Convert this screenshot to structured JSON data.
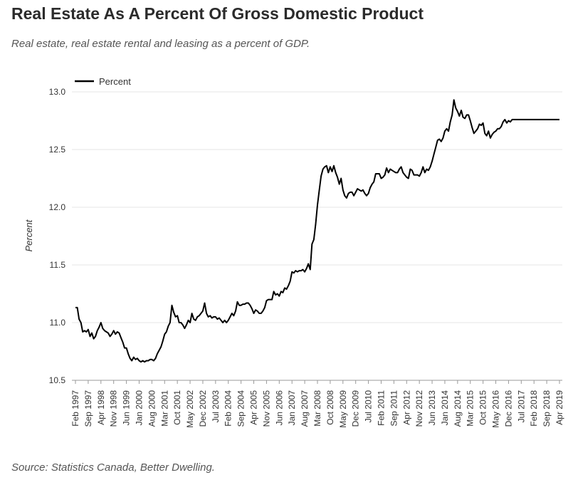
{
  "title": "Real Estate As A Percent Of Gross Domestic Product",
  "subtitle": "Real estate, real estate rental and leasing as a percent of GDP.",
  "source": "Source: Statistics Canada, Better Dwelling.",
  "chart_data": {
    "type": "line",
    "ylabel": "Percent",
    "xlabel": "",
    "ylim": [
      10.5,
      13.0
    ],
    "yticks": [
      "10.5",
      "11.0",
      "11.5",
      "12.0",
      "12.5",
      "13.0"
    ],
    "grid": "horizontal",
    "legend_position": "top-left",
    "line_color": "#000000",
    "x_tick_labels": [
      "Feb 1997",
      "Sep 1997",
      "Apr 1998",
      "Nov 1998",
      "Jun 1999",
      "Jan 2000",
      "Aug 2000",
      "Mar 2001",
      "Oct 2001",
      "May 2002",
      "Dec 2002",
      "Jul 2003",
      "Feb 2004",
      "Sep 2004",
      "Apr 2005",
      "Nov 2005",
      "Jun 2006",
      "Jan 2007",
      "Aug 2007",
      "Mar 2008",
      "Oct 2008",
      "May 2009",
      "Dec 2009",
      "Jul 2010",
      "Feb 2011",
      "Sep 2011",
      "Apr 2012",
      "Nov 2012",
      "Jun 2013",
      "Jan 2014",
      "Aug 2014",
      "Mar 2015",
      "Oct 2015",
      "May 2016",
      "Dec 2016",
      "Jul 2017",
      "Feb 2018",
      "Sep 2018",
      "Apr 2019"
    ],
    "series": [
      {
        "name": "Percent",
        "points": [
          [
            "Feb 1997",
            11.13
          ],
          [
            "Mar 1997",
            11.13
          ],
          [
            "Apr 1997",
            11.03
          ],
          [
            "May 1997",
            11.0
          ],
          [
            "Jun 1997",
            10.92
          ],
          [
            "Jul 1997",
            10.93
          ],
          [
            "Aug 1997",
            10.92
          ],
          [
            "Sep 1997",
            10.94
          ],
          [
            "Oct 1997",
            10.88
          ],
          [
            "Nov 1997",
            10.91
          ],
          [
            "Dec 1997",
            10.86
          ],
          [
            "Jan 1998",
            10.88
          ],
          [
            "Feb 1998",
            10.93
          ],
          [
            "Mar 1998",
            10.96
          ],
          [
            "Apr 1998",
            11.0
          ],
          [
            "May 1998",
            10.95
          ],
          [
            "Jun 1998",
            10.93
          ],
          [
            "Jul 1998",
            10.92
          ],
          [
            "Aug 1998",
            10.91
          ],
          [
            "Sep 1998",
            10.88
          ],
          [
            "Oct 1998",
            10.9
          ],
          [
            "Nov 1998",
            10.93
          ],
          [
            "Dec 1998",
            10.9
          ],
          [
            "Jan 1999",
            10.92
          ],
          [
            "Feb 1999",
            10.91
          ],
          [
            "Mar 1999",
            10.87
          ],
          [
            "Apr 1999",
            10.83
          ],
          [
            "May 1999",
            10.78
          ],
          [
            "Jun 1999",
            10.78
          ],
          [
            "Jul 1999",
            10.73
          ],
          [
            "Aug 1999",
            10.69
          ],
          [
            "Sep 1999",
            10.67
          ],
          [
            "Oct 1999",
            10.7
          ],
          [
            "Nov 1999",
            10.68
          ],
          [
            "Dec 1999",
            10.69
          ],
          [
            "Jan 2000",
            10.67
          ],
          [
            "Feb 2000",
            10.66
          ],
          [
            "Mar 2000",
            10.67
          ],
          [
            "Apr 2000",
            10.66
          ],
          [
            "May 2000",
            10.67
          ],
          [
            "Jun 2000",
            10.67
          ],
          [
            "Jul 2000",
            10.68
          ],
          [
            "Aug 2000",
            10.68
          ],
          [
            "Sep 2000",
            10.67
          ],
          [
            "Oct 2000",
            10.69
          ],
          [
            "Nov 2000",
            10.73
          ],
          [
            "Dec 2000",
            10.76
          ],
          [
            "Jan 2001",
            10.79
          ],
          [
            "Feb 2001",
            10.84
          ],
          [
            "Mar 2001",
            10.9
          ],
          [
            "Apr 2001",
            10.92
          ],
          [
            "May 2001",
            10.97
          ],
          [
            "Jun 2001",
            11.0
          ],
          [
            "Jul 2001",
            11.15
          ],
          [
            "Aug 2001",
            11.09
          ],
          [
            "Sep 2001",
            11.05
          ],
          [
            "Oct 2001",
            11.06
          ],
          [
            "Nov 2001",
            11.0
          ],
          [
            "Dec 2001",
            11.0
          ],
          [
            "Jan 2002",
            10.98
          ],
          [
            "Feb 2002",
            10.95
          ],
          [
            "Mar 2002",
            10.98
          ],
          [
            "Apr 2002",
            11.02
          ],
          [
            "May 2002",
            11.0
          ],
          [
            "Jun 2002",
            11.08
          ],
          [
            "Jul 2002",
            11.03
          ],
          [
            "Aug 2002",
            11.02
          ],
          [
            "Sep 2002",
            11.05
          ],
          [
            "Oct 2002",
            11.06
          ],
          [
            "Nov 2002",
            11.08
          ],
          [
            "Dec 2002",
            11.1
          ],
          [
            "Jan 2003",
            11.17
          ],
          [
            "Feb 2003",
            11.08
          ],
          [
            "Mar 2003",
            11.05
          ],
          [
            "Apr 2003",
            11.06
          ],
          [
            "May 2003",
            11.04
          ],
          [
            "Jun 2003",
            11.05
          ],
          [
            "Jul 2003",
            11.05
          ],
          [
            "Aug 2003",
            11.03
          ],
          [
            "Sep 2003",
            11.04
          ],
          [
            "Oct 2003",
            11.02
          ],
          [
            "Nov 2003",
            11.0
          ],
          [
            "Dec 2003",
            11.02
          ],
          [
            "Jan 2004",
            11.0
          ],
          [
            "Feb 2004",
            11.02
          ],
          [
            "Mar 2004",
            11.05
          ],
          [
            "Apr 2004",
            11.08
          ],
          [
            "May 2004",
            11.06
          ],
          [
            "Jun 2004",
            11.1
          ],
          [
            "Jul 2004",
            11.18
          ],
          [
            "Aug 2004",
            11.15
          ],
          [
            "Sep 2004",
            11.15
          ],
          [
            "Oct 2004",
            11.16
          ],
          [
            "Nov 2004",
            11.16
          ],
          [
            "Dec 2004",
            11.17
          ],
          [
            "Jan 2005",
            11.17
          ],
          [
            "Feb 2005",
            11.15
          ],
          [
            "Mar 2005",
            11.12
          ],
          [
            "Apr 2005",
            11.08
          ],
          [
            "May 2005",
            11.11
          ],
          [
            "Jun 2005",
            11.1
          ],
          [
            "Jul 2005",
            11.08
          ],
          [
            "Aug 2005",
            11.08
          ],
          [
            "Sep 2005",
            11.1
          ],
          [
            "Oct 2005",
            11.13
          ],
          [
            "Nov 2005",
            11.19
          ],
          [
            "Dec 2005",
            11.2
          ],
          [
            "Jan 2006",
            11.2
          ],
          [
            "Feb 2006",
            11.2
          ],
          [
            "Mar 2006",
            11.27
          ],
          [
            "Apr 2006",
            11.24
          ],
          [
            "May 2006",
            11.25
          ],
          [
            "Jun 2006",
            11.23
          ],
          [
            "Jul 2006",
            11.27
          ],
          [
            "Aug 2006",
            11.26
          ],
          [
            "Sep 2006",
            11.3
          ],
          [
            "Oct 2006",
            11.29
          ],
          [
            "Nov 2006",
            11.32
          ],
          [
            "Dec 2006",
            11.36
          ],
          [
            "Jan 2007",
            11.44
          ],
          [
            "Feb 2007",
            11.43
          ],
          [
            "Mar 2007",
            11.45
          ],
          [
            "Apr 2007",
            11.44
          ],
          [
            "May 2007",
            11.45
          ],
          [
            "Jun 2007",
            11.45
          ],
          [
            "Jul 2007",
            11.46
          ],
          [
            "Aug 2007",
            11.44
          ],
          [
            "Sep 2007",
            11.47
          ],
          [
            "Oct 2007",
            11.51
          ],
          [
            "Nov 2007",
            11.46
          ],
          [
            "Dec 2007",
            11.68
          ],
          [
            "Jan 2008",
            11.72
          ],
          [
            "Feb 2008",
            11.85
          ],
          [
            "Mar 2008",
            12.02
          ],
          [
            "Apr 2008",
            12.15
          ],
          [
            "May 2008",
            12.27
          ],
          [
            "Jun 2008",
            12.33
          ],
          [
            "Jul 2008",
            12.35
          ],
          [
            "Aug 2008",
            12.36
          ],
          [
            "Sep 2008",
            12.3
          ],
          [
            "Oct 2008",
            12.35
          ],
          [
            "Nov 2008",
            12.31
          ],
          [
            "Dec 2008",
            12.36
          ],
          [
            "Jan 2009",
            12.3
          ],
          [
            "Feb 2009",
            12.26
          ],
          [
            "Mar 2009",
            12.2
          ],
          [
            "Apr 2009",
            12.25
          ],
          [
            "May 2009",
            12.15
          ],
          [
            "Jun 2009",
            12.1
          ],
          [
            "Jul 2009",
            12.08
          ],
          [
            "Aug 2009",
            12.12
          ],
          [
            "Sep 2009",
            12.13
          ],
          [
            "Oct 2009",
            12.13
          ],
          [
            "Nov 2009",
            12.1
          ],
          [
            "Dec 2009",
            12.13
          ],
          [
            "Jan 2010",
            12.16
          ],
          [
            "Feb 2010",
            12.15
          ],
          [
            "Mar 2010",
            12.14
          ],
          [
            "Apr 2010",
            12.15
          ],
          [
            "May 2010",
            12.12
          ],
          [
            "Jun 2010",
            12.1
          ],
          [
            "Jul 2010",
            12.12
          ],
          [
            "Aug 2010",
            12.17
          ],
          [
            "Sep 2010",
            12.2
          ],
          [
            "Oct 2010",
            12.22
          ],
          [
            "Nov 2010",
            12.29
          ],
          [
            "Dec 2010",
            12.29
          ],
          [
            "Jan 2011",
            12.29
          ],
          [
            "Feb 2011",
            12.25
          ],
          [
            "Mar 2011",
            12.26
          ],
          [
            "Apr 2011",
            12.28
          ],
          [
            "May 2011",
            12.34
          ],
          [
            "Jun 2011",
            12.3
          ],
          [
            "Jul 2011",
            12.33
          ],
          [
            "Aug 2011",
            12.32
          ],
          [
            "Sep 2011",
            12.31
          ],
          [
            "Oct 2011",
            12.3
          ],
          [
            "Nov 2011",
            12.3
          ],
          [
            "Dec 2011",
            12.33
          ],
          [
            "Jan 2012",
            12.35
          ],
          [
            "Feb 2012",
            12.3
          ],
          [
            "Mar 2012",
            12.28
          ],
          [
            "Apr 2012",
            12.26
          ],
          [
            "May 2012",
            12.25
          ],
          [
            "Jun 2012",
            12.33
          ],
          [
            "Jul 2012",
            12.32
          ],
          [
            "Aug 2012",
            12.28
          ],
          [
            "Sep 2012",
            12.28
          ],
          [
            "Oct 2012",
            12.28
          ],
          [
            "Nov 2012",
            12.27
          ],
          [
            "Dec 2012",
            12.3
          ],
          [
            "Jan 2013",
            12.35
          ],
          [
            "Feb 2013",
            12.3
          ],
          [
            "Mar 2013",
            12.33
          ],
          [
            "Apr 2013",
            12.32
          ],
          [
            "May 2013",
            12.35
          ],
          [
            "Jun 2013",
            12.4
          ],
          [
            "Jul 2013",
            12.46
          ],
          [
            "Aug 2013",
            12.52
          ],
          [
            "Sep 2013",
            12.58
          ],
          [
            "Oct 2013",
            12.59
          ],
          [
            "Nov 2013",
            12.57
          ],
          [
            "Dec 2013",
            12.6
          ],
          [
            "Jan 2014",
            12.66
          ],
          [
            "Feb 2014",
            12.68
          ],
          [
            "Mar 2014",
            12.66
          ],
          [
            "Apr 2014",
            12.74
          ],
          [
            "May 2014",
            12.8
          ],
          [
            "Jun 2014",
            12.93
          ],
          [
            "Jul 2014",
            12.86
          ],
          [
            "Aug 2014",
            12.83
          ],
          [
            "Sep 2014",
            12.79
          ],
          [
            "Oct 2014",
            12.84
          ],
          [
            "Nov 2014",
            12.78
          ],
          [
            "Dec 2014",
            12.77
          ],
          [
            "Jan 2015",
            12.8
          ],
          [
            "Feb 2015",
            12.8
          ],
          [
            "Mar 2015",
            12.75
          ],
          [
            "Apr 2015",
            12.69
          ],
          [
            "May 2015",
            12.64
          ],
          [
            "Jun 2015",
            12.66
          ],
          [
            "Jul 2015",
            12.68
          ],
          [
            "Aug 2015",
            12.72
          ],
          [
            "Sep 2015",
            12.71
          ],
          [
            "Oct 2015",
            12.73
          ],
          [
            "Nov 2015",
            12.64
          ],
          [
            "Dec 2015",
            12.62
          ],
          [
            "Jan 2016",
            12.66
          ],
          [
            "Feb 2016",
            12.6
          ],
          [
            "Mar 2016",
            12.63
          ],
          [
            "Apr 2016",
            12.65
          ],
          [
            "May 2016",
            12.66
          ],
          [
            "Jun 2016",
            12.68
          ],
          [
            "Jul 2016",
            12.68
          ],
          [
            "Aug 2016",
            12.7
          ],
          [
            "Sep 2016",
            12.74
          ],
          [
            "Oct 2016",
            12.76
          ],
          [
            "Nov 2016",
            12.73
          ],
          [
            "Dec 2016",
            12.75
          ],
          [
            "Jan 2017",
            12.74
          ],
          [
            "Feb 2017",
            12.76
          ],
          [
            "Apr 2019",
            12.76
          ]
        ]
      }
    ]
  }
}
